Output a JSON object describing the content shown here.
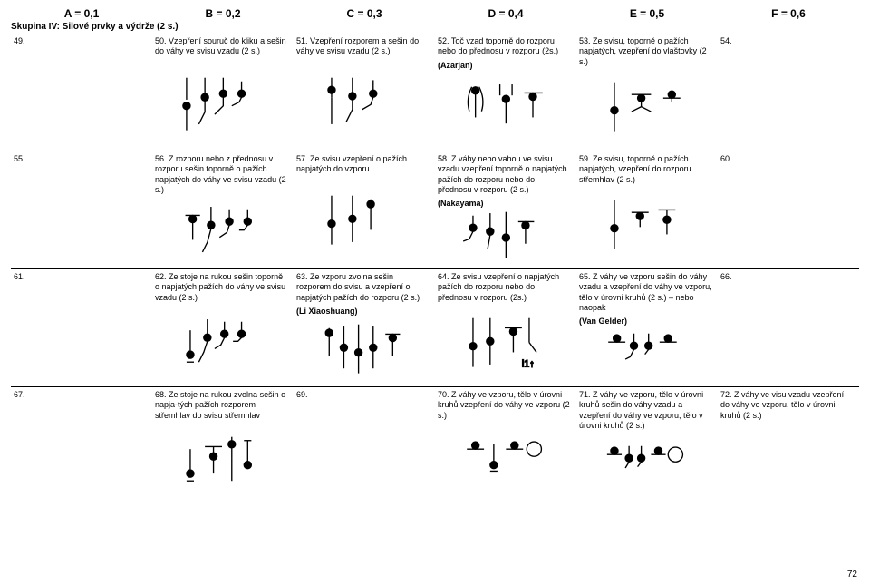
{
  "headers": {
    "A": "A = 0,1",
    "B": "B = 0,2",
    "C": "C = 0,3",
    "D": "D = 0,4",
    "E": "E = 0,5",
    "F": "F = 0,6"
  },
  "subtitle": "Skupina IV: Silové prvky a výdrže (2 s.)",
  "rows": [
    [
      {
        "n": "49.",
        "t": ""
      },
      {
        "n": "50.",
        "t": "Vzepření souruč do kliku a sešin do váhy ve svisu vzadu (2 s.)"
      },
      {
        "n": "51.",
        "t": "Vzepření rozporem a sešin do váhy ve svisu vzadu (2 s.)"
      },
      {
        "n": "52.",
        "t": "Toč vzad toporně do rozporu nebo do přednosu v rozporu (2s.)",
        "note": "(Azarjan)"
      },
      {
        "n": "53.",
        "t": "Ze svisu, toporně o pažích napjatých, vzepření do vlaštovky (2 s.)"
      },
      {
        "n": "54.",
        "t": ""
      }
    ],
    [
      {
        "n": "55.",
        "t": ""
      },
      {
        "n": "56.",
        "t": "Z rozporu nebo z přednosu v rozporu sešin toporně o pažích napjatých do váhy ve svisu vzadu (2 s.)"
      },
      {
        "n": "57.",
        "t": "Ze svisu vzepření o pažích napjatých do vzporu"
      },
      {
        "n": "58.",
        "t": "Z váhy nebo vahou ve svisu vzadu vzepření toporně o napjatých pažích do rozporu nebo do přednosu v rozporu (2 s.)",
        "note": "(Nakayama)"
      },
      {
        "n": "59.",
        "t": "Ze svisu, toporně o pažích napjatých, vzepření do rozporu střemhlav (2 s.)"
      },
      {
        "n": "60.",
        "t": ""
      }
    ],
    [
      {
        "n": "61.",
        "t": ""
      },
      {
        "n": "62.",
        "t": "Ze stoje na rukou sešin toporně o napjatých pažích do váhy ve svisu vzadu (2 s.)"
      },
      {
        "n": "63.",
        "t": "Ze vzporu zvolna sešin rozporem do svisu a vzepření o napjatých pažích do rozporu (2 s.)",
        "note": "(Li Xiaoshuang)"
      },
      {
        "n": "64.",
        "t": "Ze svisu vzepření o napjatých pažích do rozporu nebo do přednosu v rozporu (2s.)"
      },
      {
        "n": "65.",
        "t": "Z váhy ve vzporu sešin do váhy vzadu a vzepření do váhy ve vzporu, tělo v úrovni kruhů (2 s.) – nebo naopak",
        "note": "(Van Gelder)"
      },
      {
        "n": "66.",
        "t": ""
      }
    ],
    [
      {
        "n": "67.",
        "t": ""
      },
      {
        "n": "68.",
        "t": "Ze stoje na rukou zvolna sešin o napja-tých pažích rozporem střemhlav do svisu střemhlav"
      },
      {
        "n": "69.",
        "t": ""
      },
      {
        "n": "70.",
        "t": "Z váhy ve vzporu, tělo v úrovni kruhů vzepření do váhy ve vzporu (2 s.)"
      },
      {
        "n": "71.",
        "t": "Z váhy ve vzporu, tělo v úrovni kruhů sešin do váhy vzadu a vzepření do váhy ve vzporu, tělo v úrovni kruhů (2 s.)"
      },
      {
        "n": "72.",
        "t": "Z váhy ve visu vzadu vzepření do váhy ve vzporu, tělo v úrovni kruhů (2 s.)"
      }
    ]
  ],
  "figs": [
    [
      "",
      "r50",
      "r51",
      "r52",
      "r53",
      ""
    ],
    [
      "",
      "r56",
      "r57",
      "r58",
      "r59",
      ""
    ],
    [
      "",
      "r62",
      "r63",
      "r64",
      "r65",
      ""
    ],
    [
      "",
      "r68",
      "",
      "r70",
      "r71",
      ""
    ]
  ],
  "page": "72"
}
